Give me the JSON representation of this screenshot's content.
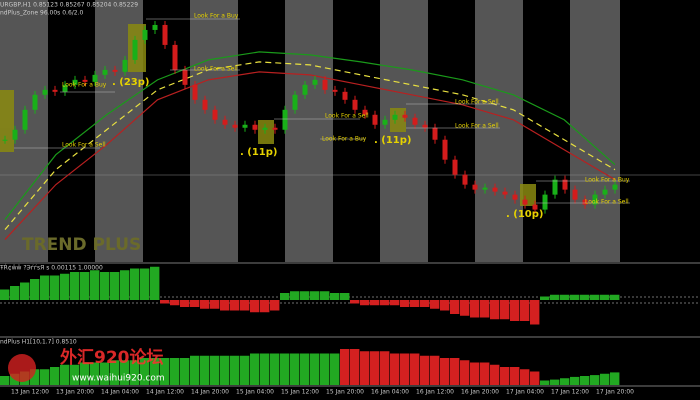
{
  "header": {
    "symbol_line": "URGBP,H1  0.85123 0.85267 0.85204 0.85229",
    "indicator_line": "ndPlus_Zone 96.00s 0.6/2.0",
    "watermark": "TREND PLUS"
  },
  "main": {
    "type": "candlestick",
    "ylim": [
      0.8476,
      0.8581
    ],
    "closes": [
      0.8525,
      0.8529,
      0.8537,
      0.8543,
      0.8545,
      0.85442,
      0.8547,
      0.8549,
      0.85482,
      0.8551,
      0.8553,
      0.85522,
      0.8557,
      0.8565,
      0.8569,
      0.8571,
      0.8563,
      0.8553,
      0.8547,
      0.8541,
      0.8537,
      0.8533,
      0.8531,
      0.85298,
      0.8531,
      0.8529,
      0.85298,
      0.8529,
      0.8537,
      0.8543,
      0.8547,
      0.8549,
      0.8545,
      0.85442,
      0.8541,
      0.8537,
      0.8535,
      0.8531,
      0.8533,
      0.8535,
      0.85338,
      0.8531,
      0.85298,
      0.8525,
      0.8517,
      0.8511,
      0.8507,
      0.8505,
      0.85058,
      0.85042,
      0.8503,
      0.8501,
      0.8499,
      0.8497,
      0.8503,
      0.8509,
      0.8505,
      0.8501,
      0.8499,
      0.8503,
      0.8505,
      0.8507
    ],
    "up_color": "#19b019",
    "down_color": "#d41c1c",
    "lines": [
      {
        "color": "#e8e040",
        "dashed": true,
        "values": [
          0.8489,
          0.8513,
          0.8529,
          0.8545,
          0.8553,
          0.85562,
          0.8555,
          0.8551,
          0.8547,
          0.8543,
          0.8537,
          0.8525,
          0.8513
        ]
      },
      {
        "color": "#1a9a1a",
        "dashed": false,
        "values": [
          0.8493,
          0.8519,
          0.8535,
          0.8549,
          0.8557,
          0.85602,
          0.8559,
          0.85562,
          0.8553,
          0.8549,
          0.8543,
          0.8533,
          0.8515
        ]
      },
      {
        "color": "#b82020",
        "dashed": false,
        "values": [
          0.8485,
          0.8507,
          0.8523,
          0.8541,
          0.8549,
          0.85522,
          0.8551,
          0.8547,
          0.8543,
          0.8539,
          0.8533,
          0.8521,
          0.8509
        ]
      }
    ],
    "annotations": [
      "Look For a Buy",
      "Look For a Sell",
      "Look For a Buy",
      "Look For a Sell",
      "Look For a Sell",
      "Look For a Buy",
      "Look For a Sell",
      "Look For a Sell",
      "Look For a Buy",
      "Look For a Sell"
    ],
    "pips": [
      ". (23p)",
      ". (11p)",
      ". (11p)",
      ". (10p)"
    ]
  },
  "oscillator": {
    "label": "ŦŔ¢ŵŵ  ?ЭѓѓѕЯ ѕ 0.00115 1.00000",
    "ylim": [
      -1,
      1
    ],
    "up_color": "#22a822",
    "down_color": "#d42020",
    "values": [
      0.3,
      0.4,
      0.5,
      0.6,
      0.7,
      0.7,
      0.75,
      0.8,
      0.8,
      0.85,
      0.8,
      0.8,
      0.85,
      0.9,
      0.9,
      0.95,
      -0.1,
      -0.15,
      -0.2,
      -0.2,
      -0.25,
      -0.25,
      -0.3,
      -0.3,
      -0.3,
      -0.35,
      -0.35,
      -0.3,
      0.2,
      0.25,
      0.25,
      0.25,
      0.25,
      0.2,
      0.2,
      -0.1,
      -0.15,
      -0.15,
      -0.15,
      -0.15,
      -0.2,
      -0.2,
      -0.2,
      -0.25,
      -0.3,
      -0.4,
      -0.45,
      -0.5,
      -0.5,
      -0.55,
      -0.55,
      -0.6,
      -0.6,
      -0.7,
      0.1,
      0.15,
      0.15,
      0.15,
      0.15,
      0.15,
      0.15,
      0.15
    ]
  },
  "strength": {
    "label": "ndPlus H1[10,1.7] 0.8510",
    "ylim": [
      0,
      1
    ],
    "series": [
      {
        "color": "#22a822",
        "values": [
          0.2,
          0.25,
          0.3,
          0.35,
          0.35,
          0.4,
          0.45,
          0.45,
          0.5,
          0.5,
          0.5,
          0.55,
          0.55,
          0.55,
          0.6,
          0.6,
          0.6,
          0.6,
          0.6,
          0.65,
          0.65,
          0.65,
          0.65,
          0.65,
          0.65,
          0.7,
          0.7,
          0.7,
          0.7,
          0.7,
          0.7,
          0.7,
          0.7,
          0.7,
          null,
          null,
          null,
          null,
          null,
          null,
          null,
          null,
          null,
          null,
          null,
          null,
          null,
          null,
          null,
          null,
          null,
          null,
          null,
          null,
          0.1,
          0.12,
          0.15,
          0.18,
          0.2,
          0.22,
          0.25,
          0.28
        ]
      },
      {
        "color": "#d42020",
        "values": [
          null,
          null,
          null,
          null,
          null,
          null,
          null,
          null,
          null,
          null,
          null,
          null,
          null,
          null,
          null,
          null,
          null,
          null,
          null,
          null,
          null,
          null,
          null,
          null,
          null,
          null,
          null,
          null,
          null,
          null,
          null,
          null,
          null,
          null,
          0.8,
          0.8,
          0.75,
          0.75,
          0.75,
          0.7,
          0.7,
          0.7,
          0.65,
          0.65,
          0.6,
          0.6,
          0.55,
          0.5,
          0.5,
          0.45,
          0.4,
          0.4,
          0.35,
          0.3,
          null,
          null,
          null,
          null,
          null,
          null,
          null,
          null
        ]
      }
    ]
  },
  "footer": {
    "site": "www.waihui920.com",
    "forum": "外汇920论坛",
    "times": [
      "13 Jan 12:00",
      "13 Jan 20:00",
      "14 Jan 04:00",
      "14 Jan 12:00",
      "14 Jan 20:00",
      "15 Jan 04:00",
      "15 Jan 12:00",
      "15 Jan 20:00",
      "16 Jan 04:00",
      "16 Jan 12:00",
      "16 Jan 20:00",
      "17 Jan 04:00",
      "17 Jan 12:00",
      "17 Jan 20:00"
    ]
  }
}
